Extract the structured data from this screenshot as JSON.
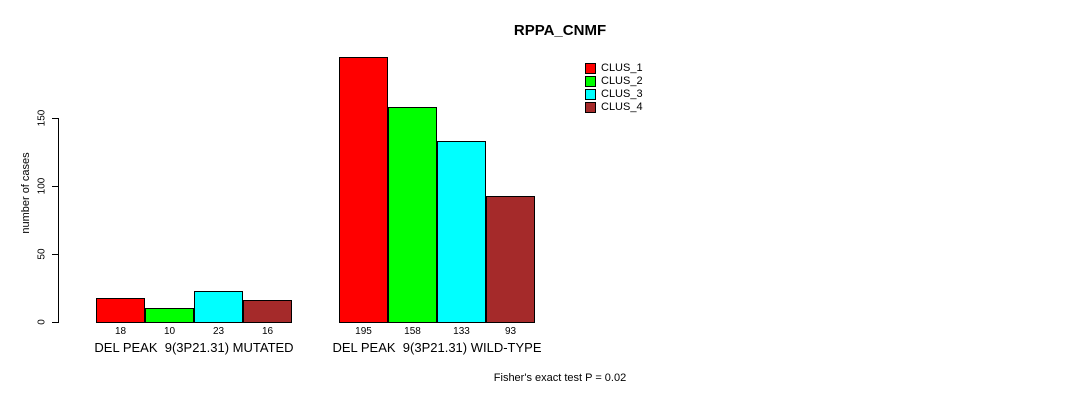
{
  "title": "RPPA_CNMF",
  "ylabel": "number of cases",
  "footer": "Fisher's exact test P = 0.02",
  "legend": [
    {
      "label": "CLUS_1",
      "color": "#FF0000"
    },
    {
      "label": "CLUS_2",
      "color": "#00FF00"
    },
    {
      "label": "CLUS_3",
      "color": "#00FFFF"
    },
    {
      "label": "CLUS_4",
      "color": "#A52A2A"
    }
  ],
  "chart_data": {
    "type": "bar",
    "title": "RPPA_CNMF",
    "xlabel": "",
    "ylabel": "number of cases",
    "categories": [
      "DEL PEAK  9(3P21.31) MUTATED",
      "DEL PEAK  9(3P21.31) WILD-TYPE"
    ],
    "series": [
      {
        "name": "CLUS_1",
        "color": "#FF0000",
        "values": [
          18,
          195
        ]
      },
      {
        "name": "CLUS_2",
        "color": "#00FF00",
        "values": [
          10,
          158
        ]
      },
      {
        "name": "CLUS_3",
        "color": "#00FFFF",
        "values": [
          23,
          133
        ]
      },
      {
        "name": "CLUS_4",
        "color": "#A52A2A",
        "values": [
          16,
          93
        ]
      }
    ],
    "bar_value_labels": [
      [
        18,
        10,
        23,
        16
      ],
      [
        195,
        158,
        133,
        93
      ]
    ],
    "yticks": [
      0,
      50,
      100,
      150
    ],
    "ylim": [
      0,
      205
    ],
    "grid": false,
    "legend_position": "top-right",
    "bar_border_color": "#000000",
    "annotation": "Fisher's exact test P = 0.02"
  }
}
